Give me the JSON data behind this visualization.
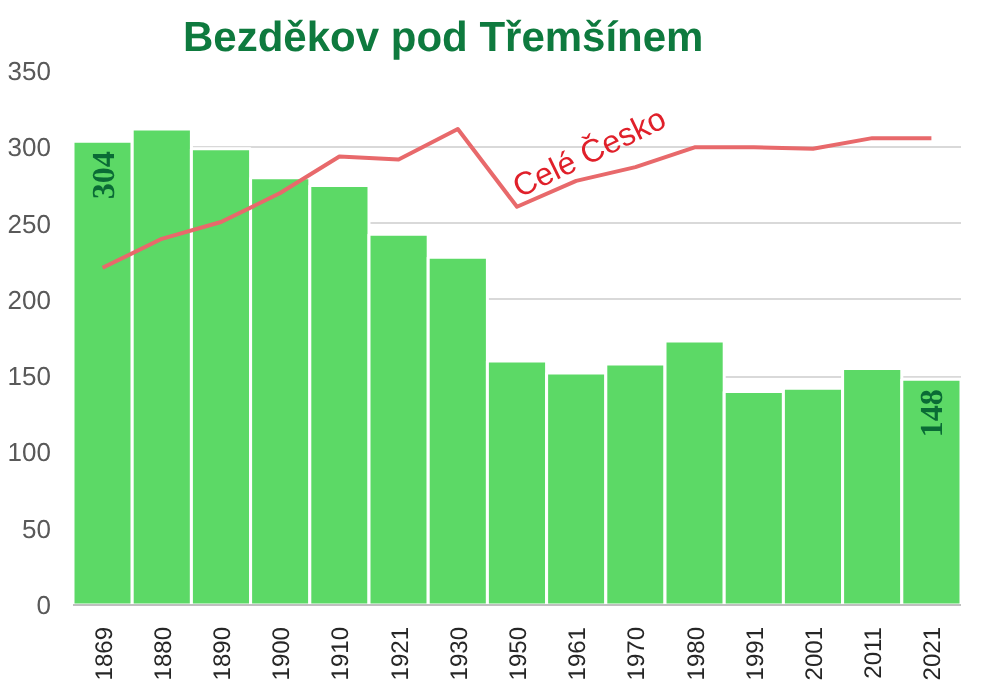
{
  "chart_data": {
    "type": "bar",
    "title": "Bezděkov pod Třemšínem",
    "categories": [
      "1869",
      "1880",
      "1890",
      "1900",
      "1910",
      "1921",
      "1930",
      "1950",
      "1961",
      "1970",
      "1980",
      "1991",
      "2001",
      "2011",
      "2021"
    ],
    "series": [
      {
        "color": "#5cd966",
        "values": [
          304,
          312,
          299,
          280,
          275,
          243,
          228,
          160,
          152,
          158,
          173,
          140,
          142,
          155,
          148
        ],
        "value_labels": [
          "304",
          null,
          null,
          null,
          null,
          null,
          null,
          null,
          null,
          null,
          null,
          null,
          null,
          null,
          "148"
        ]
      },
      {
        "type": "line",
        "name": "Celé Česko",
        "color": "#e8696b",
        "values": [
          221,
          240,
          251,
          270,
          294,
          292,
          312,
          261,
          278,
          287,
          300,
          300,
          299,
          306,
          306
        ]
      }
    ],
    "ylim": [
      0,
      350
    ],
    "yticks": [
      0,
      50,
      100,
      150,
      200,
      250,
      300,
      350
    ],
    "grid": "y",
    "legend": false
  }
}
